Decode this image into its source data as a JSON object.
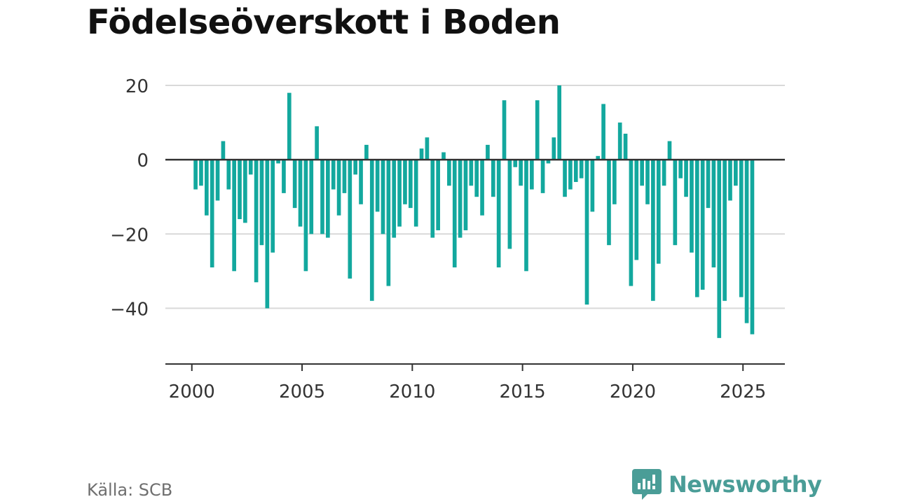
{
  "chart_data": {
    "type": "bar",
    "title": "Födelseöverskott i Boden",
    "xlabel": "",
    "ylabel": "",
    "x_ticks": [
      "2000",
      "2005",
      "2010",
      "2015",
      "2020",
      "2025"
    ],
    "x_tick_values": [
      2000,
      2005,
      2010,
      2015,
      2020,
      2025
    ],
    "y_ticks": [
      "20",
      "0",
      "−20",
      "−40"
    ],
    "y_tick_values": [
      20,
      0,
      -20,
      -40
    ],
    "xlim": [
      1998.8,
      2026.9
    ],
    "ylim": [
      -55,
      20
    ],
    "grid": true,
    "legend": "none",
    "bar_color": "#13a89e",
    "series": [
      {
        "x": [
          2000.17,
          2000.42,
          2000.67,
          2000.92,
          2001.17,
          2001.42,
          2001.67,
          2001.92,
          2002.17,
          2002.42,
          2002.67,
          2002.92,
          2003.17,
          2003.42,
          2003.67,
          2003.92,
          2004.17,
          2004.42,
          2004.67,
          2004.92,
          2005.17,
          2005.42,
          2005.67,
          2005.92,
          2006.17,
          2006.42,
          2006.67,
          2006.92,
          2007.17,
          2007.42,
          2007.67,
          2007.92,
          2008.17,
          2008.42,
          2008.67,
          2008.92,
          2009.17,
          2009.42,
          2009.67,
          2009.92,
          2010.17,
          2010.42,
          2010.67,
          2010.92,
          2011.17,
          2011.42,
          2011.67,
          2011.92,
          2012.17,
          2012.42,
          2012.67,
          2012.92,
          2013.17,
          2013.42,
          2013.67,
          2013.92,
          2014.17,
          2014.42,
          2014.67,
          2014.92,
          2015.17,
          2015.42,
          2015.67,
          2015.92,
          2016.17,
          2016.42,
          2016.67,
          2016.92,
          2017.17,
          2017.42,
          2017.67,
          2017.92,
          2018.17,
          2018.42,
          2018.67,
          2018.92,
          2019.17,
          2019.42,
          2019.67,
          2019.92,
          2020.17,
          2020.42,
          2020.67,
          2020.92,
          2021.17,
          2021.42,
          2021.67,
          2021.92,
          2022.17,
          2022.42,
          2022.67,
          2022.92,
          2023.17,
          2023.42,
          2023.67,
          2023.92,
          2024.17,
          2024.42,
          2024.67,
          2024.92,
          2025.17,
          2025.42
        ],
        "values": [
          -8,
          -7,
          -15,
          -29,
          -11,
          5,
          -8,
          -30,
          -16,
          -17,
          -4,
          -33,
          -23,
          -40,
          -25,
          -1,
          -9,
          18,
          -13,
          -18,
          -30,
          -20,
          9,
          -20,
          -21,
          -8,
          -15,
          -9,
          -32,
          -4,
          -12,
          4,
          -38,
          -14,
          -20,
          -34,
          -21,
          -18,
          -12,
          -13,
          -18,
          3,
          6,
          -21,
          -19,
          2,
          -7,
          -29,
          -21,
          -19,
          -7,
          -10,
          -15,
          4,
          -10,
          -29,
          16,
          -24,
          -2,
          -7,
          -30,
          -8,
          16,
          -9,
          -1,
          6,
          20,
          -10,
          -8,
          -6,
          -5,
          -39,
          -14,
          1,
          15,
          -23,
          -12,
          10,
          7,
          -34,
          -27,
          -7,
          -12,
          -38,
          -28,
          -7,
          5,
          -23,
          -5,
          -10,
          -25,
          -37,
          -35,
          -13,
          -29,
          -48,
          -38,
          -11,
          -7,
          -37,
          -44,
          -47
        ]
      }
    ]
  },
  "source": "Källa: SCB",
  "brand": {
    "name": "Newsworthy",
    "icon": "newsworthy-logo-icon",
    "color": "#4a9d97"
  }
}
